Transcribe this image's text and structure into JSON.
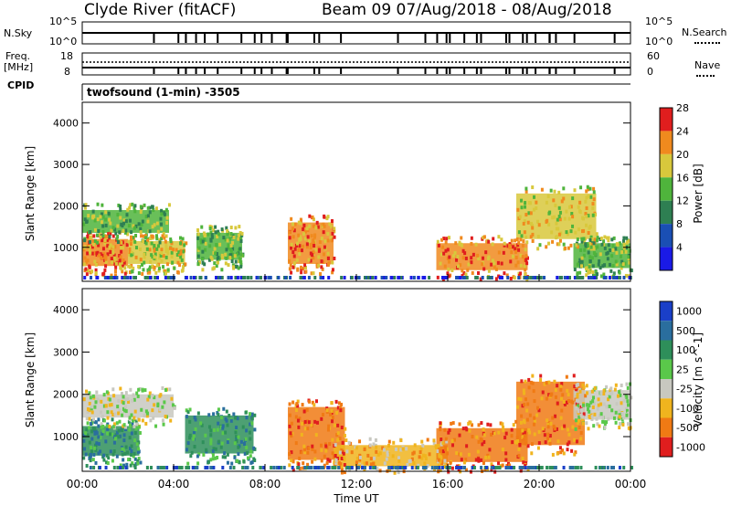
{
  "header": {
    "station": "Clyde River (fitACF)",
    "beam_range": "Beam 09  07/Aug/2018 - 08/Aug/2018"
  },
  "top_panels": {
    "nsky_label": "N.Sky",
    "nsky_top": "10^5",
    "nsky_bottom": "10^0",
    "nsearch_label": "N.Search",
    "nsearch_top": "10^5",
    "nsearch_bottom": "10^0",
    "freq_label": "Freq.",
    "freq_unit": "[MHz]",
    "freq_top": "18",
    "freq_bottom": "8",
    "nave_label": "Nave",
    "nave_top": "60",
    "nave_bottom": "0",
    "cpid_label": "CPID",
    "cpid_value": "twofsound (1-min)  -3505"
  },
  "chart_data": [
    {
      "type": "heatmap",
      "quantity": "Power",
      "ylabel": "Slant Range [km]",
      "ylim": [
        180,
        4500
      ],
      "yticks": [
        1000,
        2000,
        3000,
        4000
      ],
      "xlim": [
        0,
        24
      ],
      "colorbar_label": "Power [dB]",
      "colorbar_ticks": [
        "4",
        "8",
        "12",
        "16",
        "20",
        "24",
        "28"
      ],
      "colors": [
        "#1a1ae6",
        "#1a4fb4",
        "#2e7f52",
        "#4fb43c",
        "#d8c83c",
        "#f08a1e",
        "#e01e1e"
      ],
      "regions": [
        {
          "t0": 0.0,
          "t1": 2.0,
          "r0": 550,
          "r1": 1200,
          "level": 5
        },
        {
          "t0": 0.0,
          "t1": 3.8,
          "r0": 1350,
          "r1": 1900,
          "level": 3
        },
        {
          "t0": 2.0,
          "t1": 4.5,
          "r0": 600,
          "r1": 1150,
          "level": 4
        },
        {
          "t0": 5.0,
          "t1": 7.0,
          "r0": 700,
          "r1": 1350,
          "level": 3
        },
        {
          "t0": 9.0,
          "t1": 11.0,
          "r0": 600,
          "r1": 1600,
          "level": 5
        },
        {
          "t0": 15.5,
          "t1": 19.5,
          "r0": 450,
          "r1": 1100,
          "level": 5
        },
        {
          "t0": 19.0,
          "t1": 22.5,
          "r0": 1200,
          "r1": 2300,
          "level": 4
        },
        {
          "t0": 21.5,
          "t1": 24.0,
          "r0": 500,
          "r1": 1100,
          "level": 3
        }
      ]
    },
    {
      "type": "heatmap",
      "quantity": "Velocity",
      "ylabel": "Slant Range [km]",
      "ylim": [
        180,
        4500
      ],
      "yticks": [
        1000,
        2000,
        3000,
        4000
      ],
      "xlim": [
        0,
        24
      ],
      "xlabel": "Time UT",
      "xticks": [
        "00:00",
        "04:00",
        "08:00",
        "12:00",
        "16:00",
        "20:00",
        "00:00"
      ],
      "colorbar_label": "Velocity [m s^-1]",
      "colorbar_ticks": [
        "1000",
        "500",
        "100",
        "25",
        "-25",
        "-100",
        "-500",
        "-1000"
      ],
      "colors": [
        "#1a3fc8",
        "#2a6e9e",
        "#2e8f5a",
        "#5ac84a",
        "#c8c8c0",
        "#f0b41e",
        "#f07a14",
        "#e01e1e"
      ],
      "regions": [
        {
          "t0": 0.0,
          "t1": 2.5,
          "r0": 550,
          "r1": 1250,
          "level": 2
        },
        {
          "t0": 0.0,
          "t1": 4.0,
          "r0": 1450,
          "r1": 2000,
          "level": 4
        },
        {
          "t0": 4.5,
          "t1": 7.5,
          "r0": 600,
          "r1": 1500,
          "level": 2
        },
        {
          "t0": 9.0,
          "t1": 11.5,
          "r0": 450,
          "r1": 1700,
          "level": 6
        },
        {
          "t0": 11.0,
          "t1": 16.0,
          "r0": 300,
          "r1": 800,
          "level": 5
        },
        {
          "t0": 15.5,
          "t1": 19.5,
          "r0": 400,
          "r1": 1200,
          "level": 6
        },
        {
          "t0": 19.0,
          "t1": 22.0,
          "r0": 800,
          "r1": 2300,
          "level": 6
        },
        {
          "t0": 21.5,
          "t1": 24.0,
          "r0": 1400,
          "r1": 2100,
          "level": 4
        }
      ]
    }
  ]
}
